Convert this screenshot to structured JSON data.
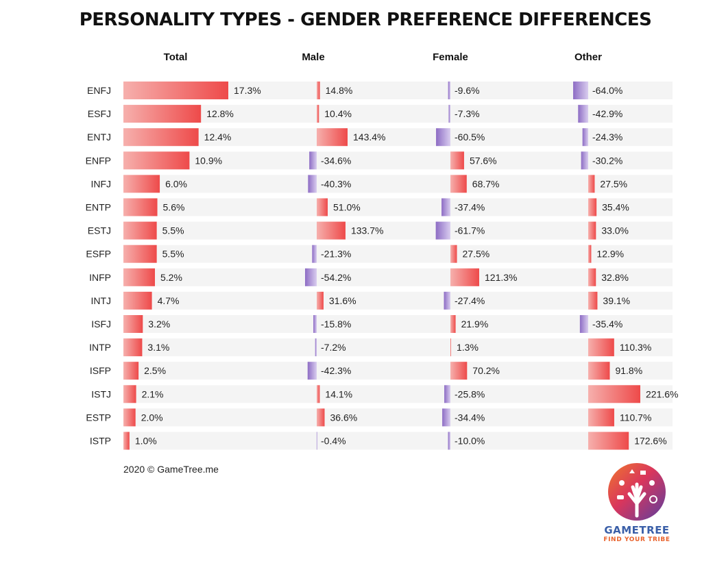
{
  "chart_data": {
    "type": "bar",
    "title": "PERSONALITY TYPES - GENDER PREFERENCE DIFFERENCES",
    "categories": [
      "ENFJ",
      "ESFJ",
      "ENTJ",
      "ENFP",
      "INFJ",
      "ENTP",
      "ESTJ",
      "ESFP",
      "INFP",
      "INTJ",
      "ISFJ",
      "INTP",
      "ISFP",
      "ISTJ",
      "ESTP",
      "ISTP"
    ],
    "series": [
      {
        "name": "Total",
        "values": [
          17.3,
          12.8,
          12.4,
          10.9,
          6.0,
          5.6,
          5.5,
          5.5,
          5.2,
          4.7,
          3.2,
          3.1,
          2.5,
          2.1,
          2.0,
          1.0
        ],
        "labels": [
          "17.3%",
          "12.8%",
          "12.4%",
          "10.9%",
          "6.0%",
          "5.6%",
          "5.5%",
          "5.5%",
          "5.2%",
          "4.7%",
          "3.2%",
          "3.1%",
          "2.5%",
          "2.1%",
          "2.0%",
          "1.0%"
        ]
      },
      {
        "name": "Male",
        "values": [
          14.8,
          10.4,
          143.4,
          -34.6,
          -40.3,
          51.0,
          133.7,
          -21.3,
          -54.2,
          31.6,
          -15.8,
          -7.2,
          -42.3,
          14.1,
          36.6,
          -0.4
        ],
        "labels": [
          "14.8%",
          "10.4%",
          "143.4%",
          "-34.6%",
          "-40.3%",
          "51.0%",
          "133.7%",
          "-21.3%",
          "-54.2%",
          "31.6%",
          "-15.8%",
          "-7.2%",
          "-42.3%",
          "14.1%",
          "36.6%",
          "-0.4%"
        ]
      },
      {
        "name": "Female",
        "values": [
          -9.6,
          -7.3,
          -60.5,
          57.6,
          68.7,
          -37.4,
          -61.7,
          27.5,
          121.3,
          -27.4,
          21.9,
          1.3,
          70.2,
          -25.8,
          -34.4,
          -10.0
        ],
        "labels": [
          "-9.6%",
          "-7.3%",
          "-60.5%",
          "57.6%",
          "68.7%",
          "-37.4%",
          "-61.7%",
          "27.5%",
          "121.3%",
          "-27.4%",
          "21.9%",
          "1.3%",
          "70.2%",
          "-25.8%",
          "-34.4%",
          "-10.0%"
        ]
      },
      {
        "name": "Other",
        "values": [
          -64.0,
          -42.9,
          -24.3,
          -30.2,
          27.5,
          35.4,
          33.0,
          12.9,
          32.8,
          39.1,
          -35.4,
          110.3,
          91.8,
          221.6,
          110.7,
          172.6
        ],
        "labels": [
          "-64.0%",
          "-42.9%",
          "-24.3%",
          "-30.2%",
          "27.5%",
          "35.4%",
          "33.0%",
          "12.9%",
          "32.8%",
          "39.1%",
          "-35.4%",
          "110.3%",
          "91.8%",
          "221.6%",
          "110.7%",
          "172.6%"
        ]
      }
    ],
    "colors": {
      "positive": "#ee4a4a",
      "positive_light": "#f6b0ad",
      "negative": "#8d6cc4",
      "negative_light": "#d9cdef",
      "row_band": "#f4f4f4"
    }
  },
  "footer": {
    "copyright": "2020 © GameTree.me"
  },
  "logo": {
    "name": "GAMETREE",
    "tagline": "FIND YOUR TRIBE"
  }
}
